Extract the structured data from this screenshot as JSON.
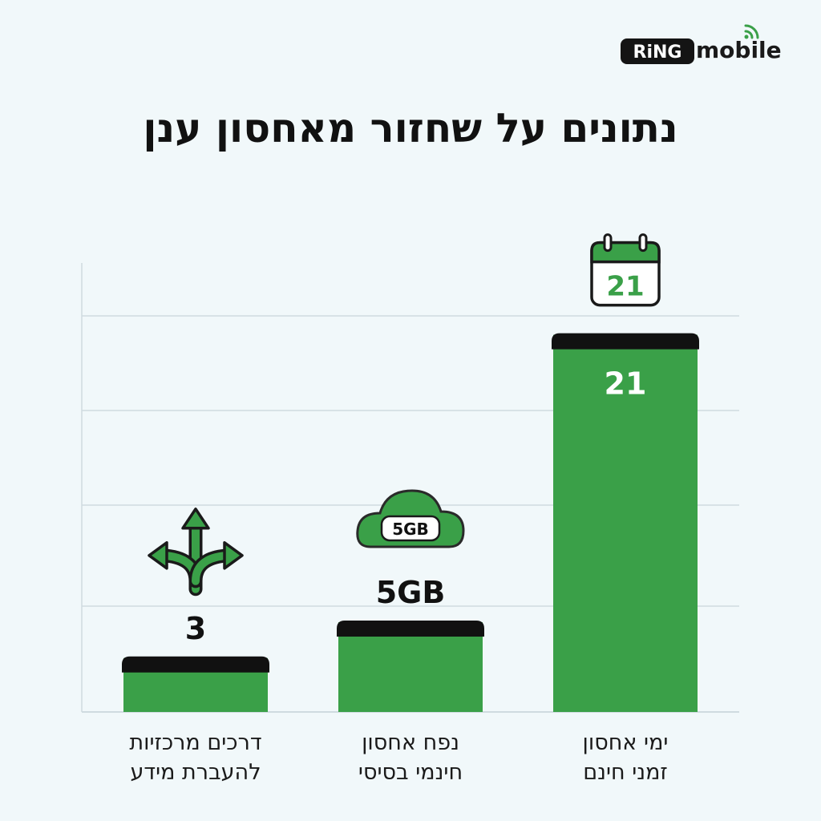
{
  "brand": {
    "name_part1": "RiNG",
    "name_part2": "mobile",
    "icon": "wifi-signal-icon"
  },
  "colors": {
    "bar": "#3aa048",
    "bar_cap": "#111111",
    "grid": "#cfdbe0",
    "accent": "#3aa048",
    "background": "#f1f8fa"
  },
  "chart_data": {
    "type": "bar",
    "title": "נתונים על שחזור מאחסון ענן",
    "categories": [
      [
        "ימי אחסון",
        "זמני חינם"
      ],
      [
        "נפח אחסון",
        "חינמי בסיסי"
      ],
      [
        "דרכים מרכזיות",
        "להעברת מידע"
      ]
    ],
    "values": [
      21,
      5,
      3
    ],
    "value_labels": [
      "21",
      "5GB",
      "3"
    ],
    "icons": [
      "calendar-icon",
      "cloud-icon",
      "split-arrows-icon"
    ],
    "icon_texts": [
      "21",
      "5GB",
      ""
    ],
    "grid": true,
    "legend": "none",
    "xlabel": "",
    "ylabel": ""
  }
}
